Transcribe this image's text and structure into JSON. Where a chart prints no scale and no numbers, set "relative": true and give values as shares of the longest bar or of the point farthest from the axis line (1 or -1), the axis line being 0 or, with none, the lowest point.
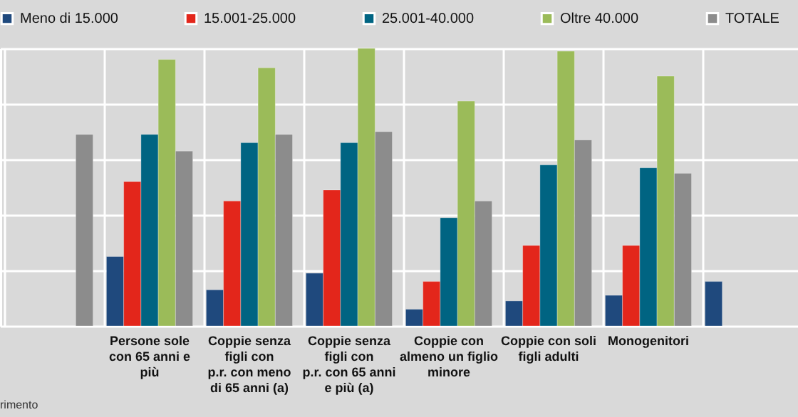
{
  "chart_data": {
    "type": "bar",
    "relative": true,
    "grid": true,
    "legend": "top",
    "categories": [
      null,
      "Persone sole\ncon 65 anni e\npiù",
      "Coppie senza\nfigli con\np.r. con meno\ndi 65 anni (a)",
      "Coppie senza\nfigli con\np.r. con 65 anni\ne più (a)",
      "Coppie con\nalmeno un figlio\nminore",
      "Coppie con soli\nfigli adulti",
      "Monogenitori",
      null
    ],
    "series": [
      {
        "name": "Meno di 15.000",
        "color": "#1f497d",
        "values": [
          null,
          0.25,
          0.13,
          0.19,
          0.06,
          0.09,
          0.11,
          0.16
        ]
      },
      {
        "name": "15.001-25.000",
        "color": "#e3261b",
        "values": [
          null,
          0.52,
          0.45,
          0.49,
          0.16,
          0.29,
          0.29,
          null
        ]
      },
      {
        "name": "25.001-40.000",
        "color": "#006482",
        "values": [
          null,
          0.69,
          0.66,
          0.66,
          0.39,
          0.58,
          0.57,
          null
        ]
      },
      {
        "name": "Oltre 40.000",
        "color": "#9bbb59",
        "values": [
          null,
          0.96,
          0.93,
          1,
          0.81,
          0.99,
          0.9,
          null
        ]
      },
      {
        "name": "TOTALE",
        "color": "#8c8c8c",
        "values": [
          0.69,
          0.63,
          0.69,
          0.7,
          0.45,
          0.67,
          0.55,
          null
        ]
      }
    ],
    "annotations": [
      "rimento"
    ]
  }
}
